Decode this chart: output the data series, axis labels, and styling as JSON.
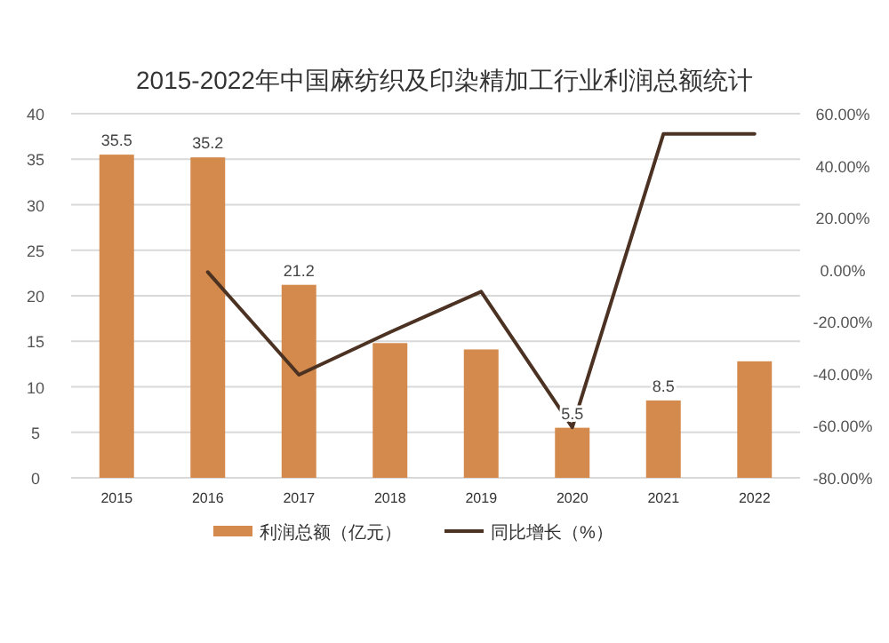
{
  "chart_data": {
    "type": "bar",
    "title": "2015-2022年中国麻纺织及印染精加工行业利润总额统计",
    "categories": [
      "2015",
      "2016",
      "2017",
      "2018",
      "2019",
      "2020",
      "2021",
      "2022"
    ],
    "series": [
      {
        "name": "利润总额（亿元）",
        "color": "#d48a4c",
        "values": [
          35.5,
          35.2,
          21.2,
          14.8,
          14.1,
          5.5,
          8.5,
          12.8
        ],
        "value_labels": [
          "35.5",
          "35.2",
          "21.2",
          null,
          null,
          "5.5",
          "8.5",
          null
        ]
      },
      {
        "name": "同比增长（%）",
        "type": "line",
        "axis": "y2",
        "color": "#4b3222",
        "values": [
          null,
          -0.9,
          -40.4,
          -24,
          -8.4,
          -60.6,
          52.2,
          52.2
        ]
      }
    ],
    "ylim": [
      0,
      40
    ],
    "yticks": [
      0,
      5,
      10,
      15,
      20,
      25,
      30,
      35,
      40
    ],
    "y2lim": [
      -80,
      60
    ],
    "y2ticks": [
      {
        "value": -80,
        "label": "-80.00%"
      },
      {
        "value": -60,
        "label": "-60.00%"
      },
      {
        "value": -40,
        "label": "-40.00%"
      },
      {
        "value": -20,
        "label": "-20.00%"
      },
      {
        "value": 0,
        "label": "0.00%"
      },
      {
        "value": 20,
        "label": "20.00%"
      },
      {
        "value": 40,
        "label": "40.00%"
      },
      {
        "value": 60,
        "label": "60.00%"
      }
    ],
    "grid": "y",
    "legend": "bottom",
    "marker": "none",
    "line_style": "solid"
  }
}
